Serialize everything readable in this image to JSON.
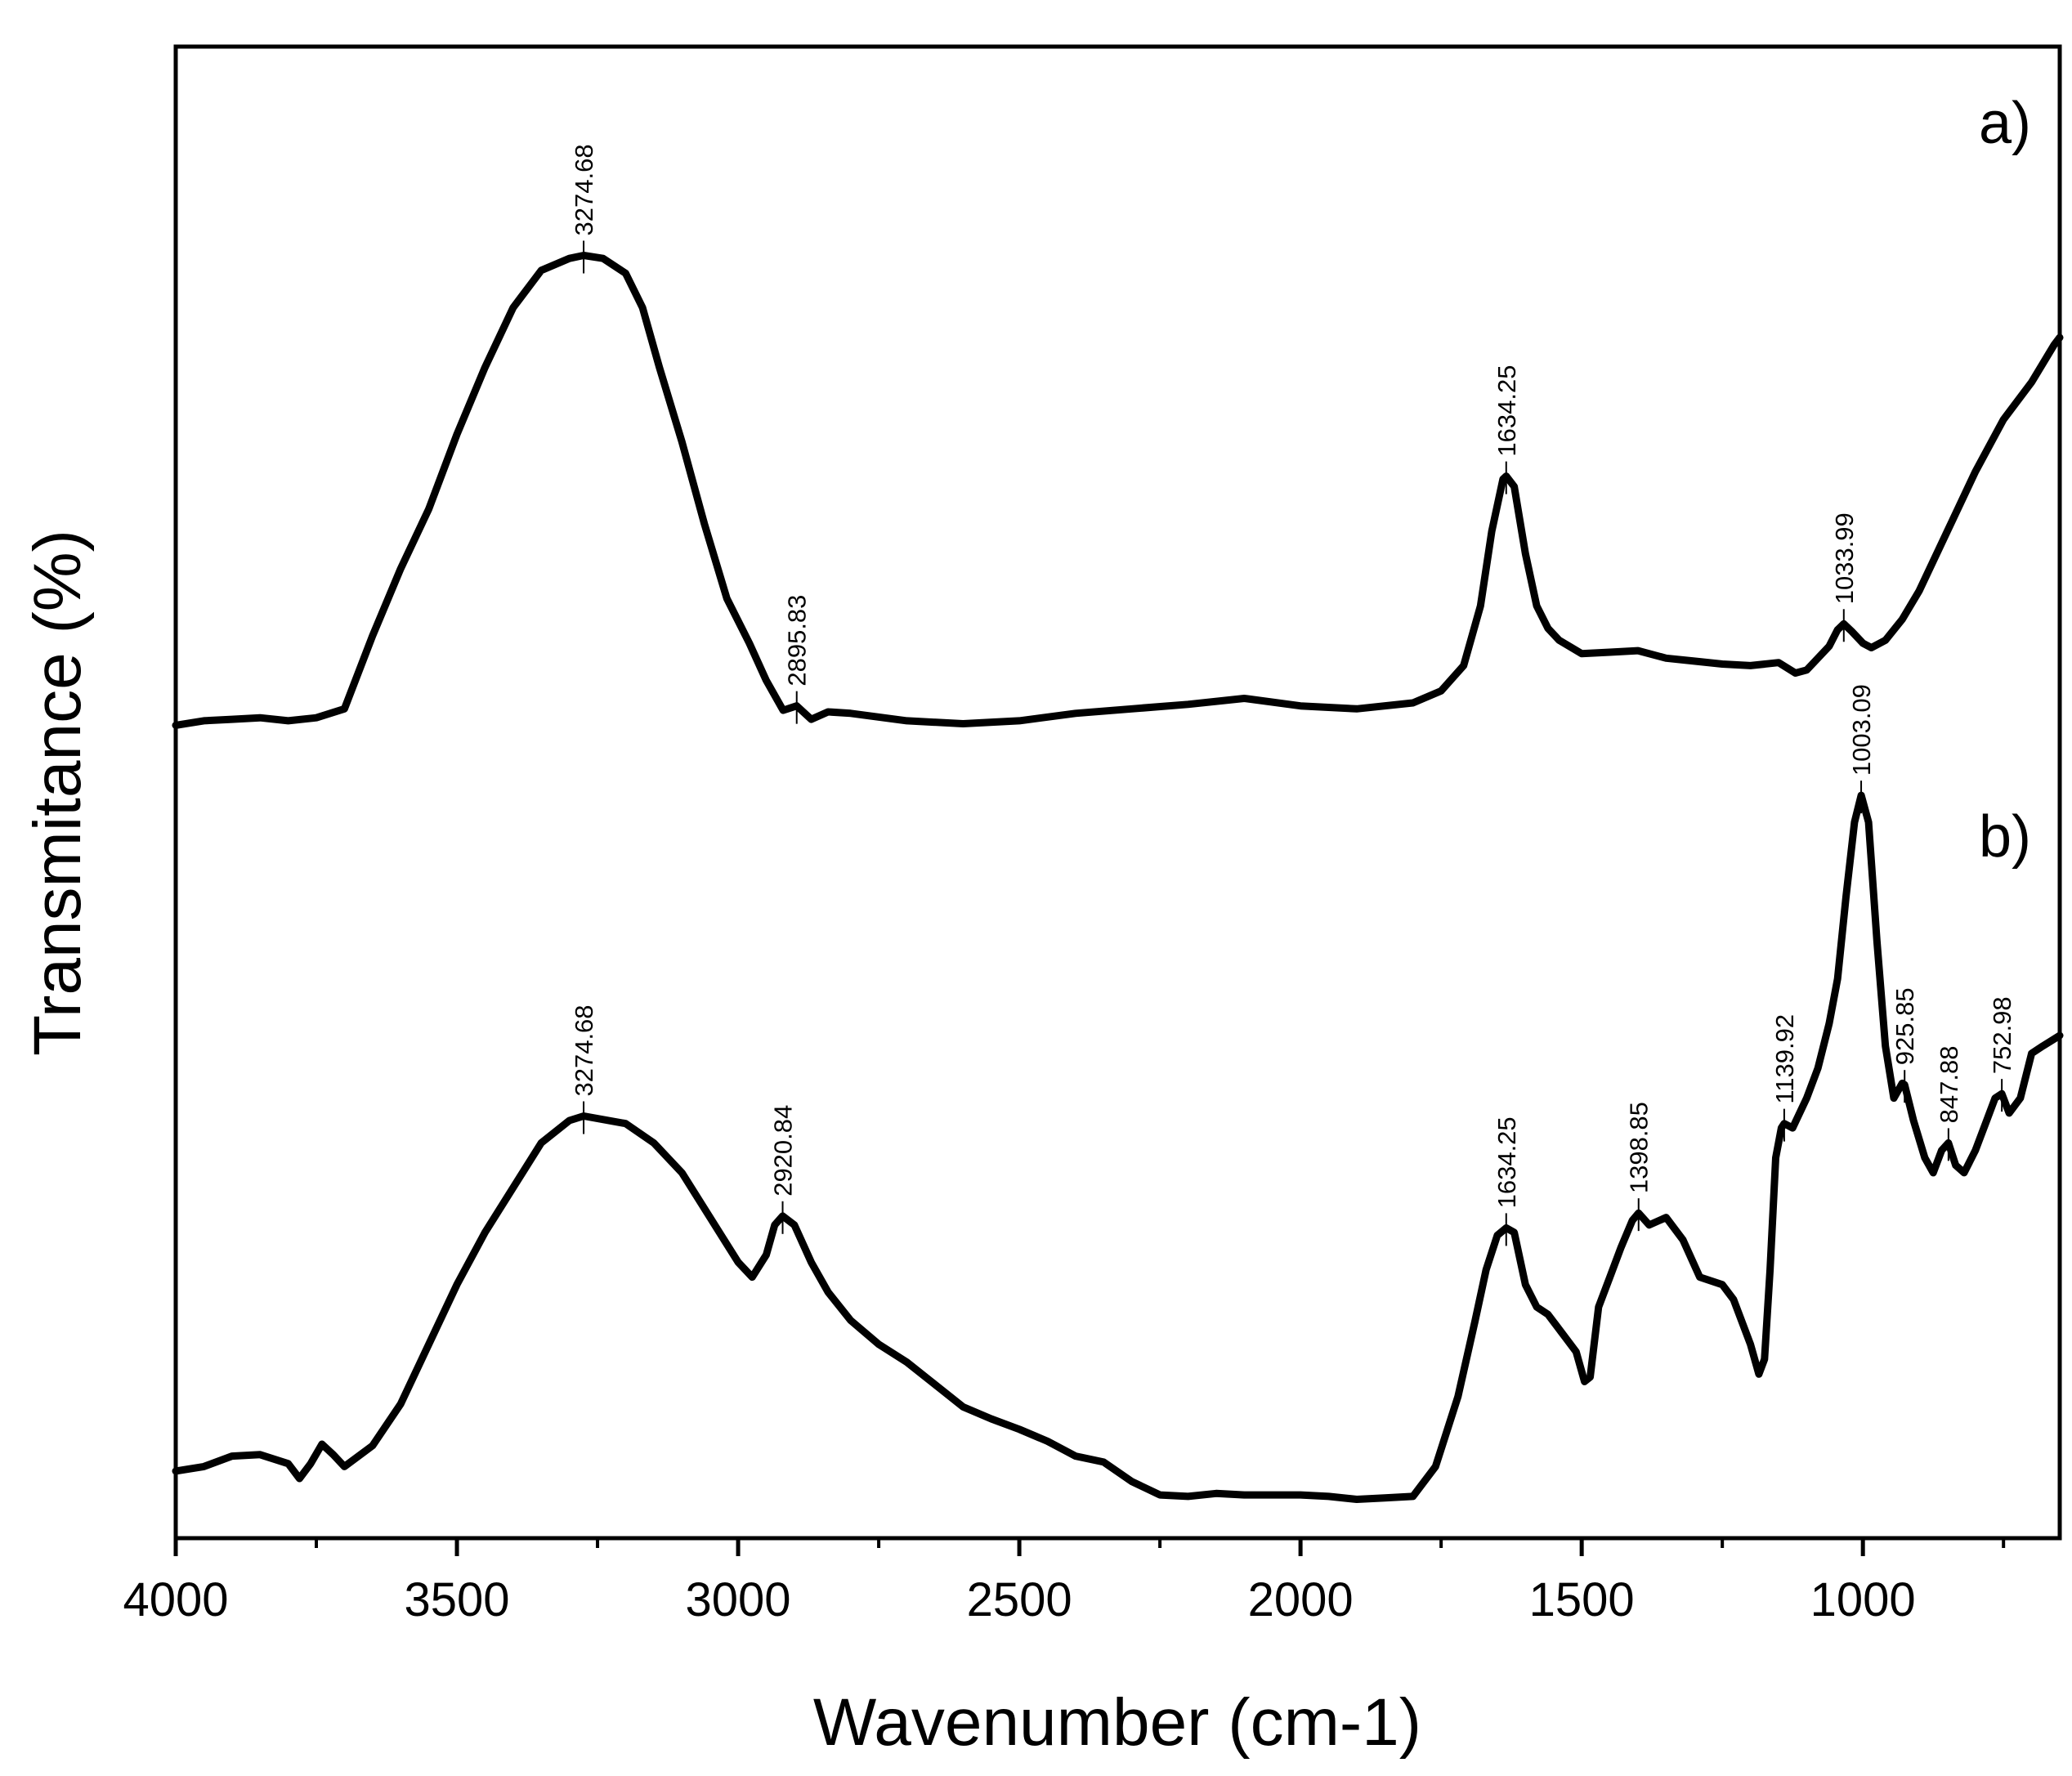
{
  "chart_data": {
    "type": "line",
    "title": "",
    "xlabel": "Wavenumber (cm-1)",
    "ylabel": "Transmitance (%)",
    "xlim": [
      4000,
      650
    ],
    "ylim": [
      0,
      100
    ],
    "x_ticks": [
      4000,
      3500,
      3000,
      2500,
      2000,
      1500,
      1000
    ],
    "x_tick_labels": [
      "4000",
      "3500",
      "3000",
      "2500",
      "2000",
      "1500",
      "1000"
    ],
    "y_ticks_shown": false,
    "series": [
      {
        "name": "a)",
        "points": [
          [
            4000,
            54.5
          ],
          [
            3950,
            54.8
          ],
          [
            3900,
            54.9
          ],
          [
            3850,
            55.0
          ],
          [
            3800,
            54.8
          ],
          [
            3750,
            55.0
          ],
          [
            3700,
            55.6
          ],
          [
            3650,
            60.5
          ],
          [
            3600,
            65.0
          ],
          [
            3550,
            69.0
          ],
          [
            3500,
            74.0
          ],
          [
            3450,
            78.5
          ],
          [
            3400,
            82.5
          ],
          [
            3350,
            85.0
          ],
          [
            3300,
            85.8
          ],
          [
            3274.68,
            86.0
          ],
          [
            3240,
            85.8
          ],
          [
            3200,
            84.8
          ],
          [
            3170,
            82.5
          ],
          [
            3140,
            78.5
          ],
          [
            3100,
            73.5
          ],
          [
            3060,
            68.0
          ],
          [
            3020,
            63.0
          ],
          [
            2980,
            60.0
          ],
          [
            2950,
            57.5
          ],
          [
            2920,
            55.5
          ],
          [
            2895.83,
            55.8
          ],
          [
            2870,
            54.9
          ],
          [
            2840,
            55.4
          ],
          [
            2800,
            55.3
          ],
          [
            2700,
            54.8
          ],
          [
            2600,
            54.6
          ],
          [
            2500,
            54.8
          ],
          [
            2400,
            55.3
          ],
          [
            2300,
            55.6
          ],
          [
            2200,
            55.9
          ],
          [
            2100,
            56.3
          ],
          [
            2000,
            55.8
          ],
          [
            1900,
            55.6
          ],
          [
            1800,
            56.0
          ],
          [
            1750,
            56.8
          ],
          [
            1710,
            58.5
          ],
          [
            1680,
            62.5
          ],
          [
            1660,
            67.5
          ],
          [
            1640,
            71.0
          ],
          [
            1634.25,
            71.2
          ],
          [
            1620,
            70.5
          ],
          [
            1600,
            66.0
          ],
          [
            1580,
            62.5
          ],
          [
            1560,
            61.0
          ],
          [
            1540,
            60.2
          ],
          [
            1500,
            59.3
          ],
          [
            1450,
            59.4
          ],
          [
            1400,
            59.5
          ],
          [
            1350,
            59.0
          ],
          [
            1300,
            58.8
          ],
          [
            1250,
            58.6
          ],
          [
            1200,
            58.5
          ],
          [
            1150,
            58.7
          ],
          [
            1120,
            58.0
          ],
          [
            1100,
            58.2
          ],
          [
            1080,
            59.0
          ],
          [
            1060,
            59.8
          ],
          [
            1045,
            60.9
          ],
          [
            1033.99,
            61.3
          ],
          [
            1020,
            60.8
          ],
          [
            1000,
            60.0
          ],
          [
            985,
            59.7
          ],
          [
            960,
            60.2
          ],
          [
            930,
            61.6
          ],
          [
            900,
            63.5
          ],
          [
            850,
            67.5
          ],
          [
            800,
            71.5
          ],
          [
            750,
            75.0
          ],
          [
            700,
            77.5
          ],
          [
            660,
            80.0
          ],
          [
            650,
            80.5
          ]
        ]
      },
      {
        "name": "b)",
        "points": [
          [
            4000,
            4.5
          ],
          [
            3950,
            4.8
          ],
          [
            3900,
            5.5
          ],
          [
            3850,
            5.6
          ],
          [
            3800,
            5.0
          ],
          [
            3780,
            4.0
          ],
          [
            3760,
            5.0
          ],
          [
            3740,
            6.3
          ],
          [
            3720,
            5.6
          ],
          [
            3700,
            4.8
          ],
          [
            3650,
            6.2
          ],
          [
            3600,
            9.0
          ],
          [
            3550,
            13.0
          ],
          [
            3500,
            17.0
          ],
          [
            3450,
            20.5
          ],
          [
            3400,
            23.5
          ],
          [
            3350,
            26.5
          ],
          [
            3300,
            28.0
          ],
          [
            3274.68,
            28.3
          ],
          [
            3200,
            27.8
          ],
          [
            3150,
            26.5
          ],
          [
            3100,
            24.5
          ],
          [
            3050,
            21.5
          ],
          [
            3000,
            18.5
          ],
          [
            2975,
            17.5
          ],
          [
            2950,
            19.0
          ],
          [
            2935,
            21.0
          ],
          [
            2920.84,
            21.6
          ],
          [
            2900,
            21.0
          ],
          [
            2870,
            18.5
          ],
          [
            2840,
            16.5
          ],
          [
            2800,
            14.6
          ],
          [
            2750,
            13.0
          ],
          [
            2700,
            11.8
          ],
          [
            2650,
            10.3
          ],
          [
            2600,
            8.8
          ],
          [
            2550,
            8.0
          ],
          [
            2500,
            7.3
          ],
          [
            2450,
            6.5
          ],
          [
            2400,
            5.5
          ],
          [
            2350,
            5.1
          ],
          [
            2300,
            3.8
          ],
          [
            2250,
            2.9
          ],
          [
            2200,
            2.8
          ],
          [
            2150,
            3.0
          ],
          [
            2100,
            2.9
          ],
          [
            2050,
            2.9
          ],
          [
            2000,
            2.9
          ],
          [
            1950,
            2.8
          ],
          [
            1900,
            2.6
          ],
          [
            1850,
            2.7
          ],
          [
            1800,
            2.8
          ],
          [
            1760,
            4.8
          ],
          [
            1720,
            9.5
          ],
          [
            1690,
            14.5
          ],
          [
            1670,
            18.0
          ],
          [
            1650,
            20.3
          ],
          [
            1634.25,
            20.8
          ],
          [
            1620,
            20.5
          ],
          [
            1600,
            17.0
          ],
          [
            1580,
            15.5
          ],
          [
            1560,
            15.0
          ],
          [
            1530,
            13.5
          ],
          [
            1510,
            12.5
          ],
          [
            1495,
            10.5
          ],
          [
            1485,
            10.8
          ],
          [
            1470,
            15.5
          ],
          [
            1450,
            17.5
          ],
          [
            1430,
            19.5
          ],
          [
            1410,
            21.3
          ],
          [
            1398.85,
            21.8
          ],
          [
            1380,
            21.0
          ],
          [
            1350,
            21.5
          ],
          [
            1320,
            20.0
          ],
          [
            1290,
            17.5
          ],
          [
            1250,
            17.0
          ],
          [
            1230,
            16.0
          ],
          [
            1200,
            13.0
          ],
          [
            1185,
            11.0
          ],
          [
            1175,
            12.0
          ],
          [
            1165,
            18.0
          ],
          [
            1155,
            25.5
          ],
          [
            1145,
            27.5
          ],
          [
            1139.92,
            27.8
          ],
          [
            1125,
            27.5
          ],
          [
            1100,
            29.5
          ],
          [
            1080,
            31.5
          ],
          [
            1060,
            34.5
          ],
          [
            1045,
            37.5
          ],
          [
            1030,
            43.0
          ],
          [
            1015,
            48.0
          ],
          [
            1003.09,
            49.8
          ],
          [
            990,
            48.0
          ],
          [
            975,
            40.0
          ],
          [
            960,
            33.0
          ],
          [
            945,
            29.5
          ],
          [
            930,
            30.5
          ],
          [
            925.85,
            30.4
          ],
          [
            910,
            28.0
          ],
          [
            890,
            25.5
          ],
          [
            875,
            24.5
          ],
          [
            860,
            26.0
          ],
          [
            847.88,
            26.5
          ],
          [
            835,
            25.0
          ],
          [
            820,
            24.5
          ],
          [
            800,
            26.0
          ],
          [
            780,
            28.0
          ],
          [
            765,
            29.5
          ],
          [
            752.98,
            29.8
          ],
          [
            740,
            28.5
          ],
          [
            720,
            29.5
          ],
          [
            700,
            32.5
          ],
          [
            680,
            33.0
          ],
          [
            650,
            33.7
          ]
        ]
      }
    ],
    "peak_annotations": [
      {
        "series": "a)",
        "wavenumber": 3274.68,
        "label": "3274.68"
      },
      {
        "series": "a)",
        "wavenumber": 2895.83,
        "label": "2895.83"
      },
      {
        "series": "a)",
        "wavenumber": 1634.25,
        "label": "1634.25"
      },
      {
        "series": "a)",
        "wavenumber": 1033.99,
        "label": "1033.99"
      },
      {
        "series": "b)",
        "wavenumber": 3274.68,
        "label": "3274.68"
      },
      {
        "series": "b)",
        "wavenumber": 2920.84,
        "label": "2920.84"
      },
      {
        "series": "b)",
        "wavenumber": 1634.25,
        "label": "1634.25"
      },
      {
        "series": "b)",
        "wavenumber": 1398.85,
        "label": "1398.85"
      },
      {
        "series": "b)",
        "wavenumber": 1139.92,
        "label": "1139.92"
      },
      {
        "series": "b)",
        "wavenumber": 1003.09,
        "label": "1003.09"
      },
      {
        "series": "b)",
        "wavenumber": 925.85,
        "label": "925.85"
      },
      {
        "series": "b)",
        "wavenumber": 847.88,
        "label": "847.88"
      },
      {
        "series": "b)",
        "wavenumber": 752.98,
        "label": "752.98"
      }
    ],
    "panel_labels": [
      {
        "series": "a)",
        "text": "a)"
      },
      {
        "series": "b)",
        "text": "b)"
      }
    ],
    "grid": false,
    "legend": "none"
  }
}
